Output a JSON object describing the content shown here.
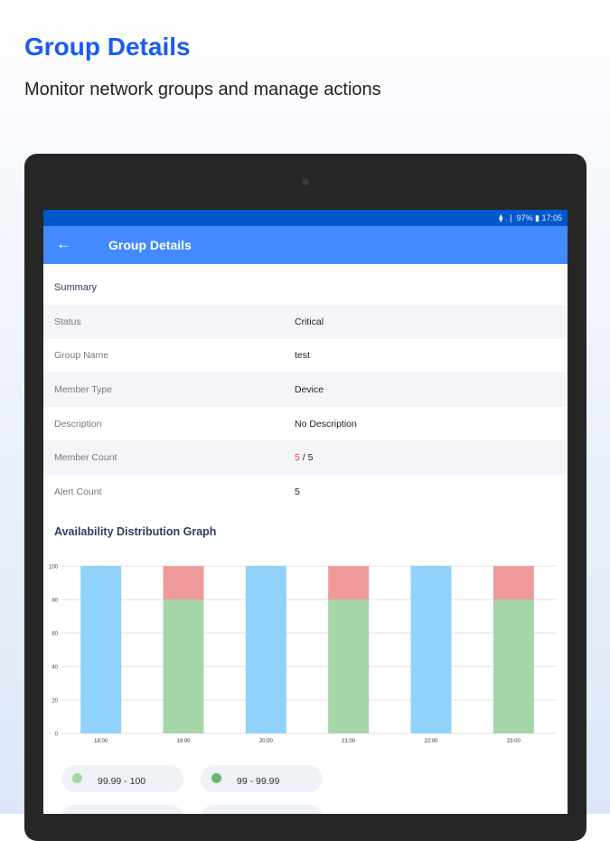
{
  "hero": {
    "title": "Group Details",
    "subtitle": "Monitor network groups and manage actions"
  },
  "statusbar": {
    "text": "⧫ .❘ 97% ▮ 17:05"
  },
  "appbar": {
    "back_icon": "arrow-left-icon",
    "title": "Group Details"
  },
  "summary": {
    "heading": "Summary",
    "rows": [
      {
        "label": "Status",
        "value": "Critical"
      },
      {
        "label": "Group Name",
        "value": "test"
      },
      {
        "label": "Member Type",
        "value": "Device"
      },
      {
        "label": "Description",
        "value": "No Description"
      },
      {
        "label": "Member Count",
        "value_part1": "5",
        "value_part2": " / 5"
      },
      {
        "label": "Alert Count",
        "value": "5"
      }
    ]
  },
  "colors": {
    "accent": "#448aff",
    "statusbar": "#0058cc",
    "critical": "#e53935"
  },
  "graph": {
    "title": "Availability Distribution Graph"
  },
  "chart_data": {
    "type": "bar",
    "stacked": true,
    "categories": [
      "18:00",
      "19:00",
      "20:00",
      "21:00",
      "22:00",
      "23:00"
    ],
    "ylim": [
      0,
      100
    ],
    "yticks": [
      0,
      20,
      40,
      60,
      80,
      100
    ],
    "grid": true,
    "series": [
      {
        "color": "#90d2fb",
        "values": [
          100,
          0,
          100,
          0,
          100,
          0
        ]
      },
      {
        "color": "#a5d6a7",
        "values": [
          0,
          80,
          0,
          80,
          0,
          80
        ]
      },
      {
        "color": "#ef9a9a",
        "values": [
          0,
          20,
          0,
          20,
          0,
          20
        ]
      }
    ]
  },
  "legend": [
    {
      "label": "99.99 - 100",
      "color": "#a5d6a7"
    },
    {
      "label": "99 - 99.99",
      "color": "#66bb6a"
    }
  ]
}
